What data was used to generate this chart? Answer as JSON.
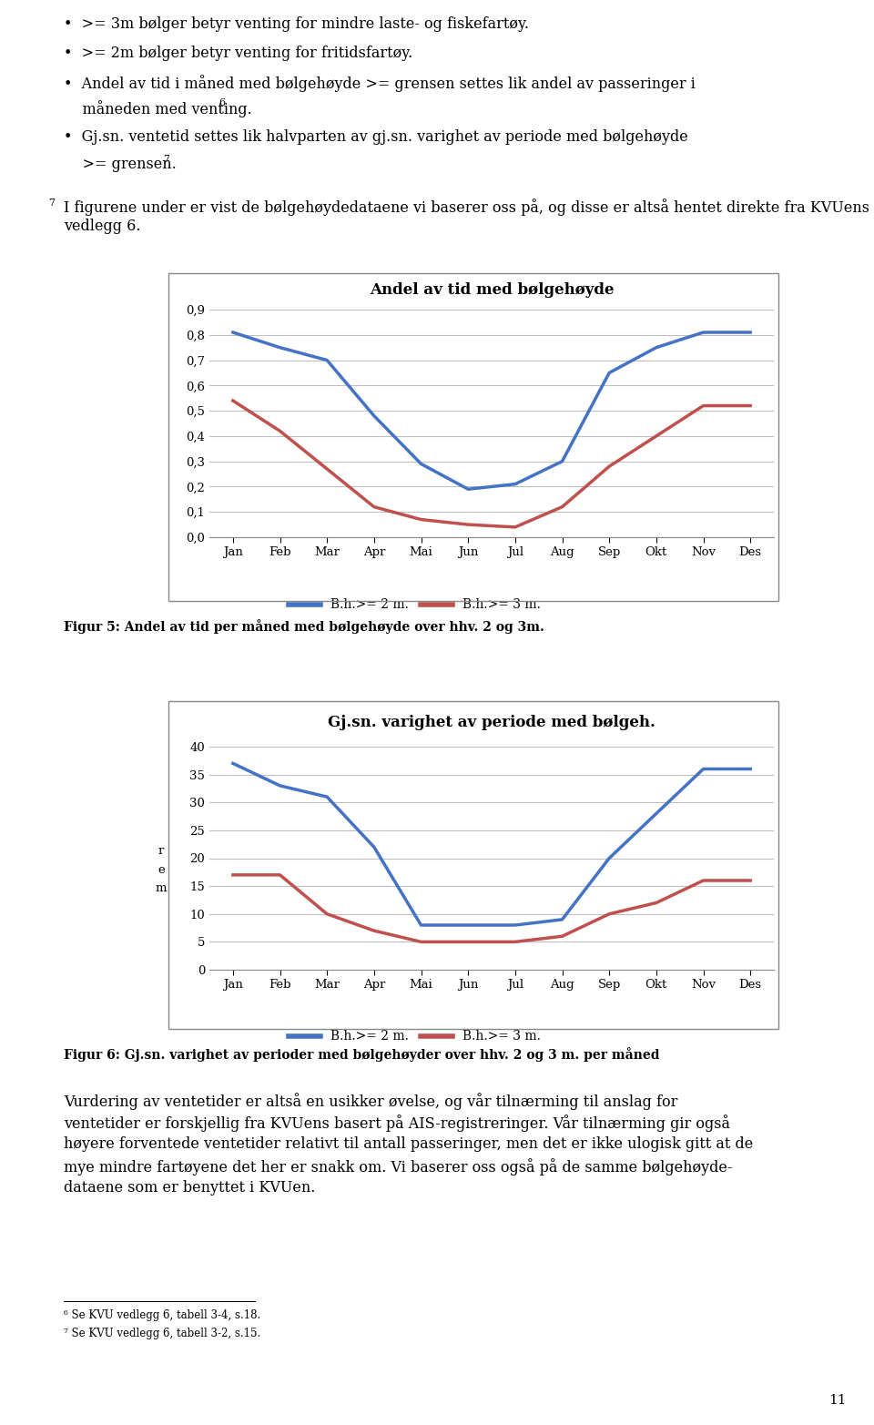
{
  "months": [
    "Jan",
    "Feb",
    "Mar",
    "Apr",
    "Mai",
    "Jun",
    "Jul",
    "Aug",
    "Sep",
    "Okt",
    "Nov",
    "Des"
  ],
  "chart1": {
    "title": "Andel av tid med bølgehøyde",
    "blue_data": [
      0.81,
      0.75,
      0.7,
      0.48,
      0.29,
      0.19,
      0.21,
      0.3,
      0.65,
      0.75,
      0.81,
      0.81
    ],
    "red_data": [
      0.54,
      0.42,
      0.27,
      0.12,
      0.07,
      0.05,
      0.04,
      0.12,
      0.28,
      0.4,
      0.52,
      0.52
    ],
    "ylim": [
      0.0,
      0.9
    ],
    "yticks": [
      0.0,
      0.1,
      0.2,
      0.3,
      0.4,
      0.5,
      0.6,
      0.7,
      0.8,
      0.9
    ],
    "ytick_labels": [
      "0,0",
      "0,1",
      "0,2",
      "0,3",
      "0,4",
      "0,5",
      "0,6",
      "0,7",
      "0,8",
      "0,9"
    ],
    "legend1": "B.h.>= 2 m.",
    "legend2": "B.h.>= 3 m.",
    "caption": "Figur 5: Andel av tid per måned med bølgehøyde over hhv. 2 og 3m."
  },
  "chart2": {
    "title": "Gj.sn. varighet av periode med bølgeh.",
    "blue_data": [
      37,
      33,
      31,
      22,
      8,
      8,
      8,
      9,
      20,
      28,
      36,
      36
    ],
    "red_data": [
      17,
      17,
      10,
      7,
      5,
      5,
      5,
      6,
      10,
      12,
      16,
      16
    ],
    "ylim": [
      0,
      40
    ],
    "yticks": [
      0,
      5,
      10,
      15,
      20,
      25,
      30,
      35,
      40
    ],
    "ytick_labels": [
      "0",
      "5",
      "10",
      "15",
      "20",
      "25",
      "30",
      "35",
      "40"
    ],
    "ylabel": "r\ne\nm",
    "legend1": "B.h.>= 2 m.",
    "legend2": "B.h.>= 3 m.",
    "caption": "Figur 6: Gj.sn. varighet av perioder med bølgehøyder over hhv. 2 og 3 m. per måned"
  },
  "blue_color": "#4472C4",
  "red_color": "#C0504D",
  "grid_color": "#BFBFBF",
  "background_color": "#FFFFFF",
  "text_color": "#000000",
  "bullet1": "•  >= 3m bølger betyr venting for mindre laste- og fiskefartøy.",
  "bullet2": "•  >= 2m bølger betyr venting for fritidsfartøy.",
  "bullet3a": "•  Andel av tid i måned med bølgehøyde >= grensen settes lik andel av passeringer i",
  "bullet3b": "    måneden med venting.",
  "bullet3b_super": "6",
  "bullet4a": "•  Gj.sn. ventetid settes lik halvparten av gj.sn. varighet av periode med bølgehøyde",
  "bullet4b": "    >= grensen.",
  "bullet4b_super": "7",
  "intro_super": "7",
  "intro": "I figurene under er vist de bølgehøydedataene vi baserer oss på, og disse er altså hentet direkte fra KVUens vedlegg 6.",
  "body_text": "Vurdering av ventetider er altså en usikker øvelse, og vår tilnærming til anslag for ventetider er forskjellig fra KVUens basert på AIS-registreringer. Vår tilnærming gir også høyere forventede ventetider relativt til antall passeringer, men det er ikke ulogisk gitt at de mye mindre fartøyene det her er snakk om. Vi baserer oss også på de samme bølgehøyde-dataene som er benyttet i KVUen.",
  "footnote6": "6 Se KVU vedlegg 6, tabell 3-4, s.18.",
  "footnote7": "7 Se KVU vedlegg 6, tabell 3-2, s.15.",
  "page_num": "11"
}
